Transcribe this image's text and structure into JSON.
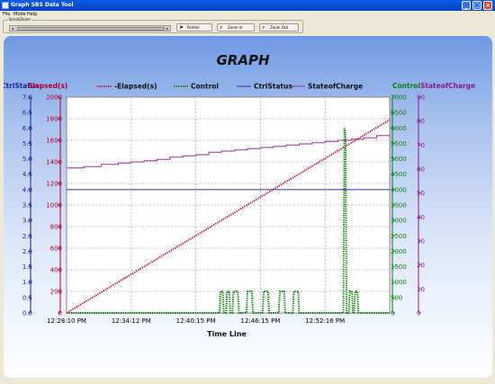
{
  "window": {
    "title": "Graph SBS Data Tool",
    "controls": [
      "_",
      "□",
      "×"
    ]
  },
  "menu": [
    "File",
    "Mode",
    "Help"
  ],
  "toolbar": {
    "group_label": "Scroll/Zoom",
    "pointer_label": "Pointer",
    "zoom_in_label": "Zoom In",
    "zoom_out_label": "Zoom Out",
    "pointer_icon": "pointer-icon",
    "zoom_in_icon": "magnifier-icon",
    "zoom_out_icon": "magnifier-icon"
  },
  "chart_data": {
    "type": "line",
    "title": "GRAPH",
    "xlabel": "Time Line",
    "x_ticks": [
      "12:28:10 PM",
      "12:34:12 PM",
      "12:40:15 PM",
      "12:46:15 PM",
      "12:52:16 PM"
    ],
    "grid": true,
    "legend": "top",
    "axes": [
      {
        "label": "Elapsed(s)",
        "side": "left",
        "color": "#b4002d",
        "range": [
          0,
          2000
        ],
        "ticks": [
          "0",
          "200",
          "400",
          "600",
          "800",
          "1000",
          "1200",
          "1400",
          "1600",
          "1800",
          "2000"
        ]
      },
      {
        "label": "CtrlStatus",
        "side": "left",
        "color": "#2020a0",
        "range": [
          0,
          7.0
        ],
        "ticks": [
          "0.0",
          "0.5",
          "1.0",
          "1.5",
          "2.0",
          "2.5",
          "3.0",
          "3.5",
          "4.0",
          "4.5",
          "5.0",
          "5.5",
          "6.0",
          "6.5",
          "7.0"
        ]
      },
      {
        "label": "Control",
        "side": "right",
        "color": "#0a800a",
        "range": [
          0,
          7000
        ],
        "ticks": [
          "0",
          "500",
          "1000",
          "1500",
          "2000",
          "2500",
          "3000",
          "3500",
          "4000",
          "4500",
          "5000",
          "5500",
          "6000",
          "6500",
          "7000"
        ]
      },
      {
        "label": "StateofCharge",
        "side": "right",
        "color": "#8a1c8a",
        "range": [
          0,
          90
        ],
        "ticks": [
          "0",
          "10",
          "20",
          "30",
          "40",
          "50",
          "60",
          "70",
          "80",
          "90"
        ]
      }
    ],
    "x_range": [
      0,
      1.5
    ],
    "series": [
      {
        "name": "-Elapsed(s)",
        "axis": 0,
        "color": "#c8102e",
        "style": "dotted",
        "points": [
          [
            0,
            0
          ],
          [
            1.5,
            1790
          ]
        ]
      },
      {
        "name": "Control",
        "axis": 2,
        "color": "#0a800a",
        "style": "dotted",
        "points": [
          [
            0,
            0
          ],
          [
            0.71,
            0
          ],
          [
            0.715,
            700
          ],
          [
            0.725,
            700
          ],
          [
            0.73,
            0
          ],
          [
            0.74,
            0
          ],
          [
            0.745,
            700
          ],
          [
            0.755,
            700
          ],
          [
            0.76,
            0
          ],
          [
            0.77,
            0
          ],
          [
            0.775,
            700
          ],
          [
            0.795,
            700
          ],
          [
            0.8,
            0
          ],
          [
            0.835,
            0
          ],
          [
            0.84,
            700
          ],
          [
            0.86,
            700
          ],
          [
            0.865,
            0
          ],
          [
            0.91,
            0
          ],
          [
            0.915,
            700
          ],
          [
            0.935,
            700
          ],
          [
            0.94,
            0
          ],
          [
            0.985,
            0
          ],
          [
            0.99,
            700
          ],
          [
            1.01,
            700
          ],
          [
            1.015,
            0
          ],
          [
            1.05,
            0
          ],
          [
            1.055,
            700
          ],
          [
            1.075,
            700
          ],
          [
            1.08,
            0
          ],
          [
            1.285,
            0
          ],
          [
            1.29,
            6000
          ],
          [
            1.295,
            5800
          ],
          [
            1.3,
            0
          ],
          [
            1.31,
            0
          ],
          [
            1.315,
            700
          ],
          [
            1.325,
            700
          ],
          [
            1.33,
            0
          ],
          [
            1.335,
            0
          ],
          [
            1.34,
            700
          ],
          [
            1.35,
            700
          ],
          [
            1.355,
            0
          ],
          [
            1.5,
            0
          ]
        ]
      },
      {
        "name": "CtrlStatus",
        "axis": 1,
        "color": "#2a2ab0",
        "style": "solid",
        "points": [
          [
            0,
            4.0
          ],
          [
            1.5,
            4.0
          ]
        ]
      },
      {
        "name": "StateofCharge",
        "axis": 3,
        "color": "#9a2a9a",
        "style": "solid",
        "points": [
          [
            0,
            60.5
          ],
          [
            0.08,
            60.5
          ],
          [
            0.08,
            61
          ],
          [
            0.16,
            61
          ],
          [
            0.16,
            62
          ],
          [
            0.24,
            62
          ],
          [
            0.24,
            62.5
          ],
          [
            0.3,
            62.5
          ],
          [
            0.3,
            63
          ],
          [
            0.36,
            63
          ],
          [
            0.36,
            63.5
          ],
          [
            0.42,
            63.5
          ],
          [
            0.42,
            64
          ],
          [
            0.48,
            64
          ],
          [
            0.48,
            65
          ],
          [
            0.54,
            65
          ],
          [
            0.54,
            65.5
          ],
          [
            0.6,
            65.5
          ],
          [
            0.6,
            66
          ],
          [
            0.66,
            66
          ],
          [
            0.66,
            67
          ],
          [
            0.72,
            67
          ],
          [
            0.72,
            67.5
          ],
          [
            0.78,
            67.5
          ],
          [
            0.78,
            68
          ],
          [
            0.84,
            68
          ],
          [
            0.84,
            68.5
          ],
          [
            0.9,
            68.5
          ],
          [
            0.9,
            69
          ],
          [
            0.96,
            69
          ],
          [
            0.96,
            69.5
          ],
          [
            1.02,
            69.5
          ],
          [
            1.02,
            70
          ],
          [
            1.08,
            70
          ],
          [
            1.08,
            70.5
          ],
          [
            1.14,
            70.5
          ],
          [
            1.14,
            71
          ],
          [
            1.2,
            71
          ],
          [
            1.2,
            71.5
          ],
          [
            1.26,
            71.5
          ],
          [
            1.26,
            72
          ],
          [
            1.32,
            72
          ],
          [
            1.32,
            72.5
          ],
          [
            1.38,
            72.5
          ],
          [
            1.38,
            73
          ],
          [
            1.44,
            73
          ],
          [
            1.44,
            74
          ],
          [
            1.5,
            74
          ]
        ]
      }
    ]
  }
}
